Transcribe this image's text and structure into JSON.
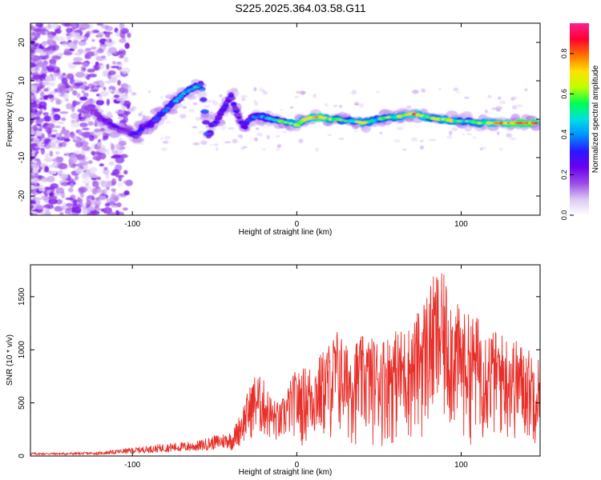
{
  "title": "S225.2025.364.03.58.G11",
  "chart_data": [
    {
      "type": "heatmap",
      "panel": "top",
      "xlabel": "Height of straight line (km)",
      "ylabel": "Frequency (Hz)",
      "xlim": [
        -162,
        148
      ],
      "ylim": [
        -25,
        25
      ],
      "xticks": [
        -100,
        0,
        100
      ],
      "yticks": [
        -20,
        -10,
        0,
        10,
        20
      ],
      "colorbar": {
        "label": "Normalized spectral amplitude",
        "range": [
          0.0,
          0.95
        ],
        "ticks": [
          0.0,
          0.2,
          0.4,
          0.6,
          0.8
        ],
        "colormap": [
          "#ffffff",
          "#dcc8f4",
          "#9a4be6",
          "#6a00f0",
          "#2a18ff",
          "#0090ff",
          "#00e0e0",
          "#00ff50",
          "#c0ff00",
          "#ffe000",
          "#ff7000",
          "#ff0030",
          "#ff2090"
        ]
      },
      "ridge": {
        "x": [
          -125,
          -118,
          -110,
          -103,
          -98,
          -93,
          -88,
          -83,
          -78,
          -73,
          -68,
          -63,
          -58,
          -54,
          -52,
          -48,
          -44,
          -40,
          -36,
          -32,
          -28,
          -24,
          -20,
          -15,
          -10,
          -5,
          0,
          5,
          10,
          15,
          20,
          25,
          30,
          35,
          40,
          45,
          50,
          55,
          60,
          65,
          70,
          75,
          80,
          85,
          90,
          95,
          100,
          105,
          110,
          115,
          120,
          125,
          130,
          135,
          140,
          145
        ],
        "y": [
          3,
          0,
          -2,
          -3,
          -4,
          -2,
          -1,
          1,
          3,
          5,
          7,
          8,
          9,
          -5,
          -2,
          0,
          3,
          6,
          1,
          -2,
          0,
          1,
          0.5,
          0,
          -0.5,
          -1,
          -1.5,
          0,
          0.5,
          0.5,
          0,
          0,
          -0.5,
          -0.5,
          -1,
          -0.5,
          0,
          0.5,
          0.5,
          1,
          1.5,
          1,
          0.5,
          0,
          0,
          -0.5,
          -0.5,
          -0.5,
          -1,
          -1,
          -1,
          -1,
          -1,
          -1,
          -1,
          -1
        ],
        "amplitude": [
          0.2,
          0.25,
          0.25,
          0.25,
          0.3,
          0.3,
          0.35,
          0.4,
          0.4,
          0.45,
          0.5,
          0.5,
          0.45,
          0.35,
          0.3,
          0.3,
          0.35,
          0.3,
          0.3,
          0.3,
          0.35,
          0.4,
          0.45,
          0.5,
          0.55,
          0.6,
          0.65,
          0.7,
          0.8,
          0.85,
          0.7,
          0.6,
          0.55,
          0.6,
          0.65,
          0.6,
          0.55,
          0.6,
          0.65,
          0.7,
          0.8,
          0.75,
          0.65,
          0.6,
          0.7,
          0.65,
          0.6,
          0.55,
          0.6,
          0.7,
          0.75,
          0.8,
          0.85,
          0.85,
          0.9,
          0.9
        ]
      }
    },
    {
      "type": "line",
      "panel": "bottom",
      "xlabel": "Height of straight line (km)",
      "ylabel": "SNR (10 * v/v)",
      "xlim": [
        -162,
        148
      ],
      "ylim": [
        0,
        1800
      ],
      "xticks": [
        -100,
        0,
        100
      ],
      "yticks": [
        0,
        500,
        1000,
        1500
      ],
      "color": "#e8302a",
      "envelope": {
        "x": [
          -162,
          -140,
          -120,
          -100,
          -80,
          -60,
          -50,
          -40,
          -35,
          -30,
          -25,
          -20,
          -15,
          -10,
          -5,
          0,
          5,
          10,
          20,
          25,
          30,
          40,
          50,
          60,
          70,
          80,
          85,
          90,
          100,
          110,
          120,
          130,
          140,
          148
        ],
        "y": [
          25,
          25,
          30,
          60,
          90,
          110,
          150,
          180,
          350,
          550,
          720,
          650,
          500,
          450,
          620,
          760,
          820,
          850,
          1050,
          1180,
          1020,
          1100,
          1080,
          1150,
          1200,
          1550,
          1700,
          1650,
          1320,
          1280,
          1150,
          1100,
          1000,
          900
        ]
      }
    }
  ]
}
